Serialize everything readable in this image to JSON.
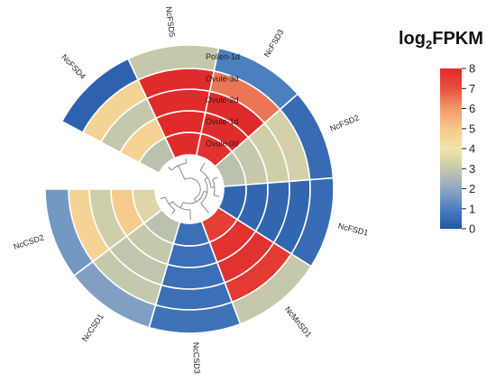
{
  "chart_data": {
    "type": "heatmap",
    "layout": "circular",
    "legend_title": "log2FPKM",
    "legend_title_main": "log",
    "legend_title_sub": "2",
    "legend_title_tail": "FPKM",
    "colorbar": {
      "min": 0,
      "max": 8,
      "ticks": [
        "0",
        "1",
        "2",
        "3",
        "4",
        "5",
        "6",
        "7",
        "8"
      ],
      "placement": "right"
    },
    "samples": [
      "Ovule-0d",
      "Ovule-1d",
      "Ovule-2d",
      "Ovule-3d",
      "Pollen-1d"
    ],
    "genes": [
      {
        "name": "NcFSD4",
        "values": [
          2.8,
          4.6,
          3.0,
          4.6,
          0.3
        ]
      },
      {
        "name": "NcFSD5",
        "values": [
          8.0,
          8.0,
          8.0,
          8.0,
          3.0
        ]
      },
      {
        "name": "NcFSD3",
        "values": [
          7.8,
          8.0,
          8.0,
          6.5,
          1.0
        ]
      },
      {
        "name": "NcFSD2",
        "values": [
          2.8,
          3.0,
          3.2,
          3.3,
          0.5
        ]
      },
      {
        "name": "NcFSD1",
        "values": [
          0.4,
          0.4,
          0.4,
          0.4,
          0.5
        ]
      },
      {
        "name": "NcMnSD1",
        "values": [
          7.5,
          7.8,
          7.8,
          7.6,
          3.0
        ]
      },
      {
        "name": "NcCSD3",
        "values": [
          0.6,
          0.6,
          0.6,
          0.6,
          0.7
        ]
      },
      {
        "name": "NcCSD1",
        "values": [
          2.8,
          3.0,
          2.9,
          3.0,
          1.8
        ]
      },
      {
        "name": "NcCSD2",
        "values": [
          3.5,
          4.9,
          3.2,
          4.6,
          1.6
        ]
      }
    ],
    "colors": {
      "scale": [
        "#2456a6",
        "#4a7fc0",
        "#8ea8c4",
        "#c5c8aa",
        "#f2e4a6",
        "#f6c88a",
        "#f09a6c",
        "#e8503e",
        "#e02b2b"
      ]
    }
  }
}
